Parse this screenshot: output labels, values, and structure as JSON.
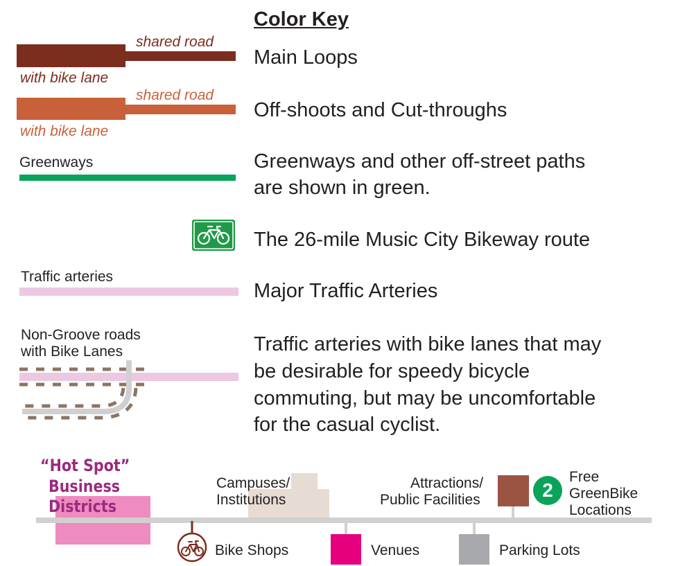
{
  "legend": {
    "title": "Color Key",
    "main_loops": {
      "shared_label": "shared road",
      "lane_label": "with bike lane",
      "description": "Main Loops",
      "color": "#7b2d1e"
    },
    "offshoots": {
      "shared_label": "shared road",
      "lane_label": "with bike lane",
      "description": "Off-shoots and Cut-throughs",
      "color": "#c8613a"
    },
    "greenways": {
      "label": "Greenways",
      "description_line1": "Greenways and other off-street paths",
      "description_line2": "are shown in green.",
      "color": "#0aa35a"
    },
    "bikeway": {
      "icon": "bicycle-sign-icon",
      "description": "The 26-mile Music City Bikeway route",
      "color": "#1f9a48"
    },
    "arteries": {
      "label": "Traffic arteries",
      "description": "Major Traffic Arteries",
      "color": "#ecc8e2"
    },
    "non_groove": {
      "label_line1": "Non-Groove roads",
      "label_line2": "with Bike Lanes",
      "description_lines": [
        "Traffic arteries with bike lanes that may",
        "be desirable for speedy bicycle",
        "commuting, but may be uncomfortable",
        "for the casual cyclist."
      ],
      "dash_color": "#8b7565",
      "road_color": "#d0d0d0"
    }
  },
  "bottom_key": {
    "hot_spot": {
      "lines": [
        "“Hot Spot”",
        "Business",
        "Districts"
      ],
      "color": "#ef8bbf",
      "text_color": "#9c2a7f"
    },
    "campuses": {
      "lines": [
        "Campuses/",
        "Institutions"
      ],
      "color": "#e6dcd4"
    },
    "attractions": {
      "lines": [
        "Attractions/",
        "Public Facilities"
      ],
      "color": "#9b5441"
    },
    "greenbike": {
      "badge": "2",
      "lines": [
        "Free",
        "GreenBike",
        "Locations"
      ],
      "color": "#0aa35a"
    },
    "bike_shops": {
      "label": "Bike Shops",
      "icon": "bicycle-icon",
      "color": "#7b2d1e"
    },
    "venues": {
      "label": "Venues",
      "color": "#e6007e"
    },
    "parking": {
      "label": "Parking Lots",
      "color": "#a7a9ac"
    },
    "road_color": "#d0d0d0"
  }
}
